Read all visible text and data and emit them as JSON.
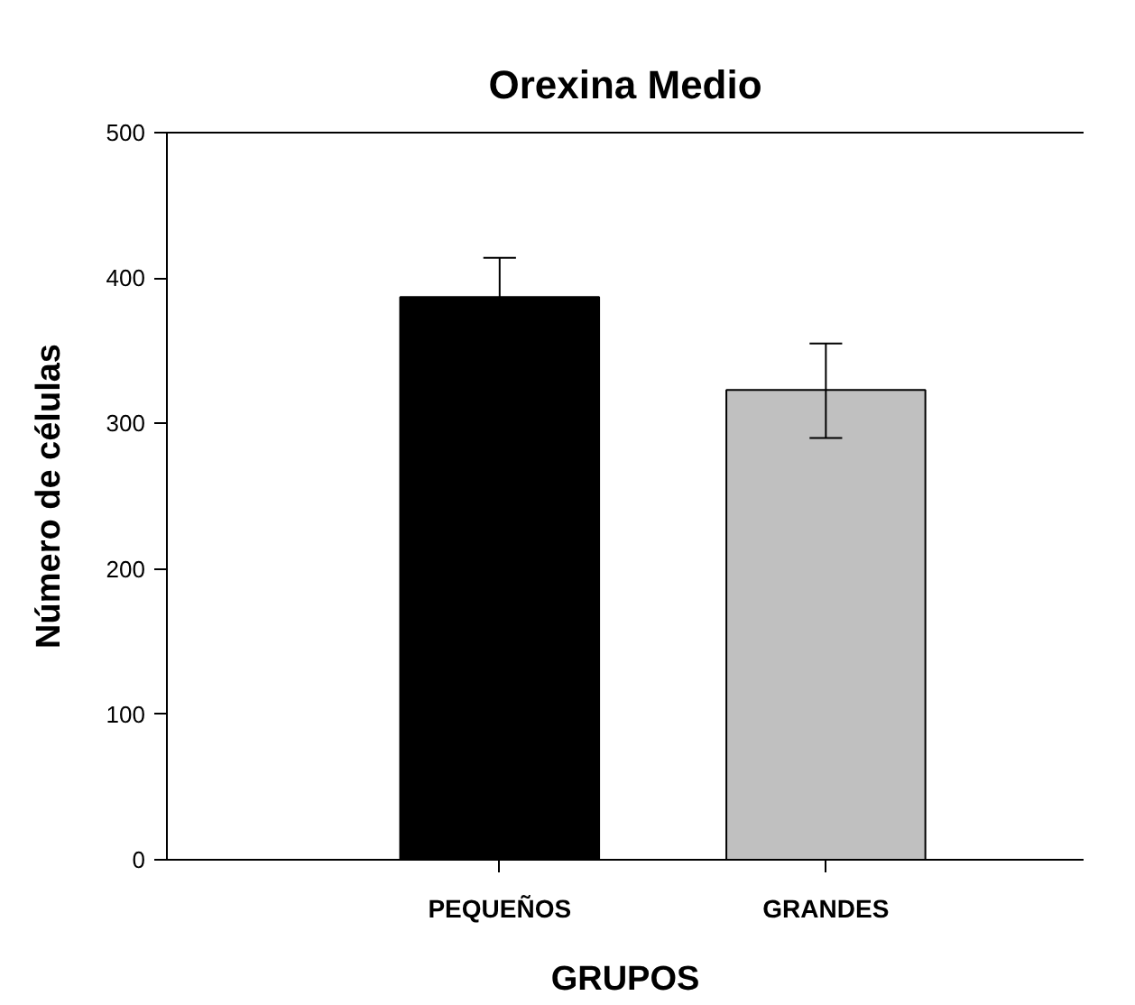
{
  "chart_data": {
    "type": "bar",
    "title": "Orexina Medio",
    "xlabel": "GRUPOS",
    "ylabel": "Número de células",
    "categories": [
      "PEQUEÑOS",
      "GRANDES"
    ],
    "values": [
      387,
      323
    ],
    "colors": [
      "#000000",
      "#c0c0c0"
    ],
    "errors": [
      27,
      [
        290,
        355
      ]
    ],
    "ylim": [
      0,
      500
    ],
    "yticks": [
      0,
      100,
      200,
      300,
      400,
      500
    ],
    "grid": false
  }
}
